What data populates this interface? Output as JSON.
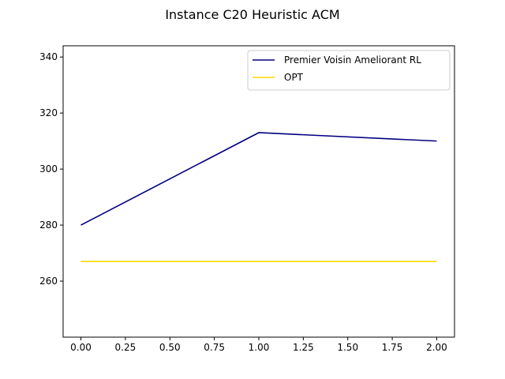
{
  "chart_data": {
    "type": "line",
    "title": "Instance C20 Heuristic ACM",
    "xlabel": "",
    "ylabel": "",
    "xlim": [
      -0.1,
      2.1
    ],
    "ylim": [
      240,
      344
    ],
    "xticks": [
      0,
      0.25,
      0.5,
      0.75,
      1,
      1.25,
      1.5,
      1.75,
      2
    ],
    "xtick_labels": [
      "0.00",
      "0.25",
      "0.50",
      "0.75",
      "1.00",
      "1.25",
      "1.50",
      "1.75",
      "2.00"
    ],
    "yticks": [
      260,
      280,
      300,
      320,
      340
    ],
    "ytick_labels": [
      "260",
      "280",
      "300",
      "320",
      "340"
    ],
    "grid": false,
    "legend_position": "top-right",
    "series": [
      {
        "name": "Premier Voisin Ameliorant RL",
        "color": "#000080",
        "x": [
          0,
          1,
          2
        ],
        "values": [
          280,
          313,
          310
        ]
      },
      {
        "name": "OPT",
        "color": "#ffd700",
        "x": [
          0,
          1,
          2
        ],
        "values": [
          267,
          267,
          267
        ]
      }
    ]
  }
}
